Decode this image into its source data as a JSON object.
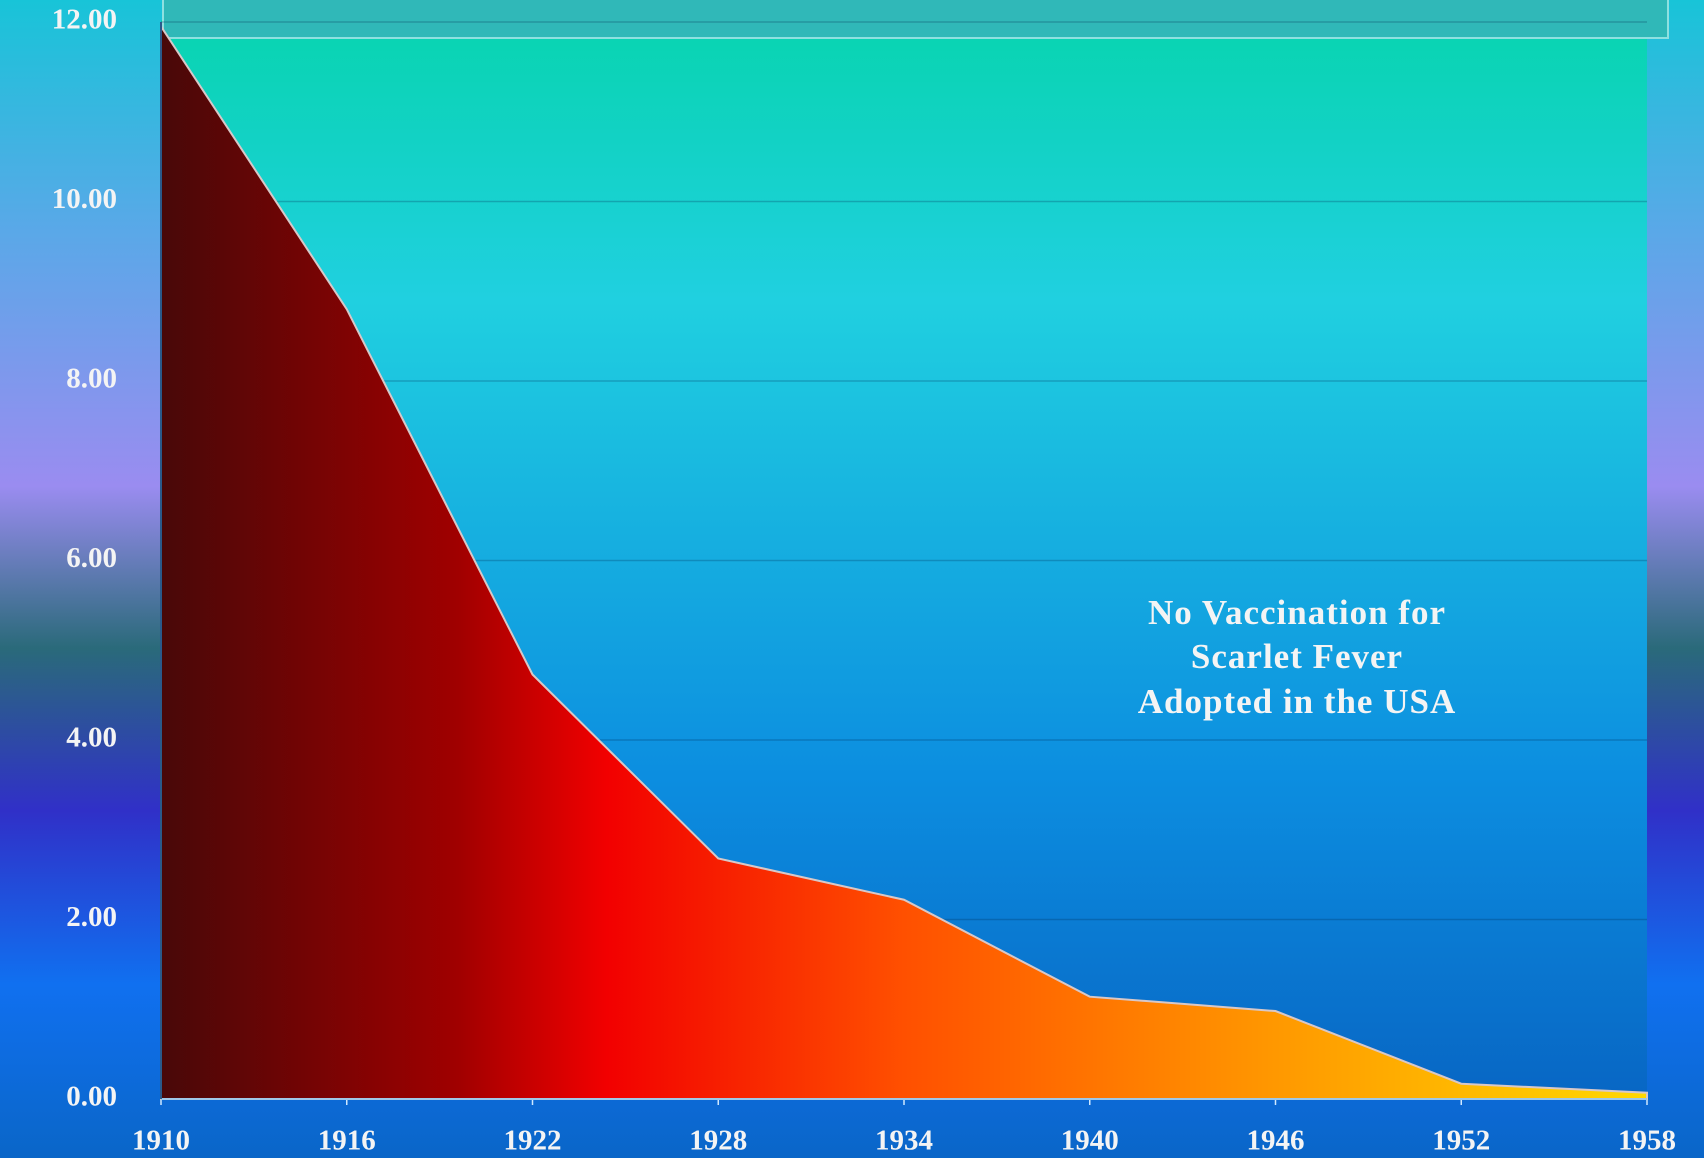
{
  "chart_data": {
    "type": "area",
    "x": [
      1910,
      1916,
      1922,
      1928,
      1934,
      1940,
      1946,
      1952,
      1958
    ],
    "values": [
      11.95,
      8.8,
      4.73,
      2.68,
      2.22,
      1.14,
      0.98,
      0.17,
      0.07
    ],
    "xlim": [
      1910,
      1958
    ],
    "xticks": [
      1910,
      1916,
      1922,
      1928,
      1934,
      1940,
      1946,
      1952,
      1958
    ],
    "ylim": [
      0,
      12
    ],
    "yticks": [
      {
        "value": 0,
        "label": "0.00"
      },
      {
        "value": 2,
        "label": "2.00"
      },
      {
        "value": 4,
        "label": "4.00"
      },
      {
        "value": 6,
        "label": "6.00"
      },
      {
        "value": 8,
        "label": "8.00"
      },
      {
        "value": 10,
        "label": "10.00"
      },
      {
        "value": 12,
        "label": "12.00"
      }
    ],
    "grid": true,
    "annotation": [
      "No Vaccination for",
      "Scarlet Fever",
      "Adopted in the USA"
    ]
  }
}
